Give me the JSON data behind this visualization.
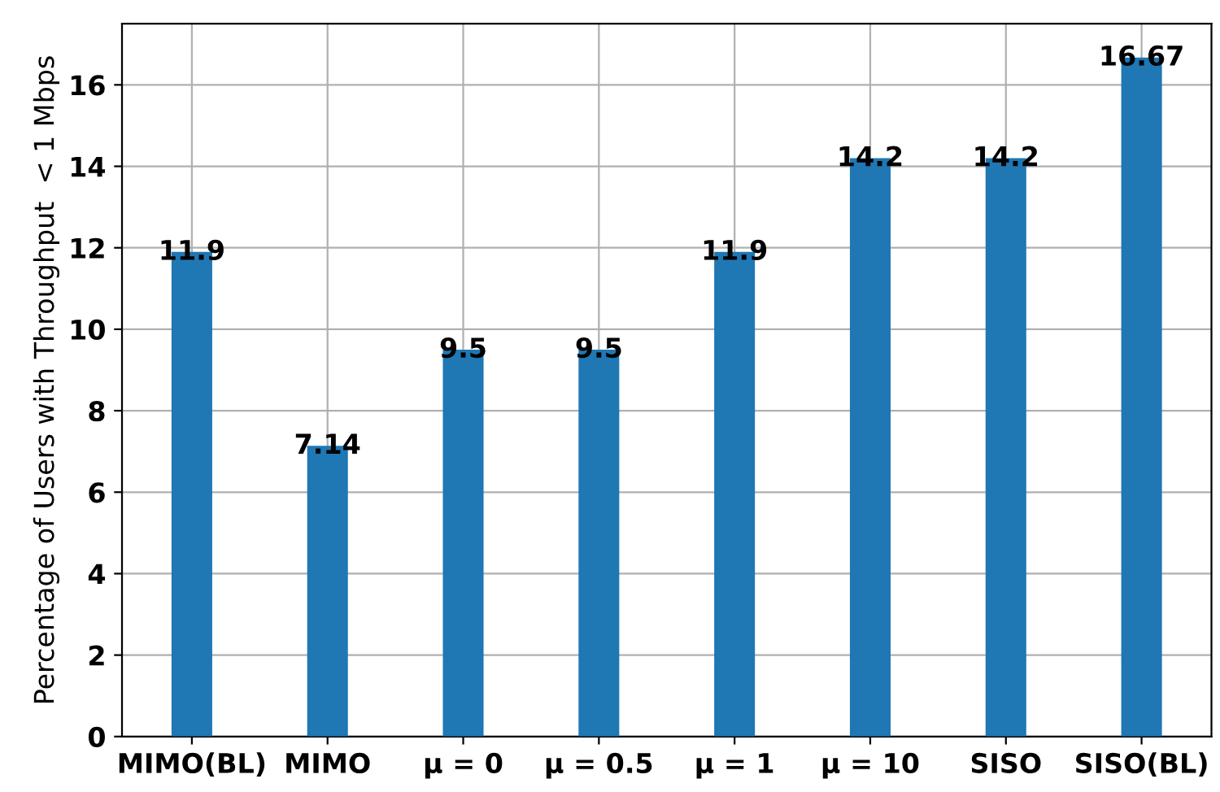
{
  "chart_data": {
    "type": "bar",
    "ylabel": "Percentage of Users with Throughput  < 1 Mbps",
    "categories": [
      "MIMO(BL)",
      "MIMO",
      "μ = 0",
      "μ = 0.5",
      "μ = 1",
      "μ = 10",
      "SISO",
      "SISO(BL)"
    ],
    "values": [
      11.9,
      7.14,
      9.5,
      9.5,
      11.9,
      14.2,
      14.2,
      16.67
    ],
    "color": "#1f77b4",
    "data_labels": true,
    "grid": true,
    "ylim": [
      0,
      17.5
    ],
    "yticks": [
      0,
      2,
      4,
      6,
      8,
      10,
      12,
      14,
      16
    ]
  }
}
